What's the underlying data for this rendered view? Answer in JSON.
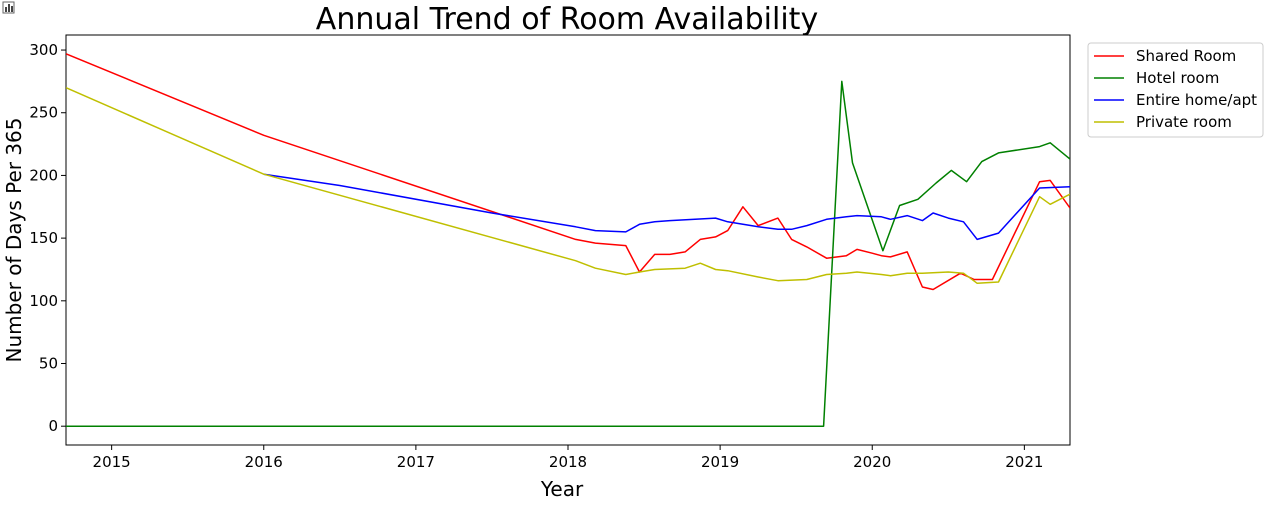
{
  "toolbar_icon": "bar-chart-icon",
  "chart_data": {
    "type": "line",
    "title": "Annual Trend of Room Availability",
    "xlabel": "Year",
    "ylabel": "Number of Days Per 365",
    "x_ticks": [
      "2015",
      "2016",
      "2017",
      "2018",
      "2019",
      "2020",
      "2021"
    ],
    "y_ticks": [
      "0",
      "50",
      "100",
      "150",
      "200",
      "250",
      "300"
    ],
    "xlim": [
      2014.7,
      2021.3
    ],
    "ylim": [
      -15,
      312
    ],
    "grid": false,
    "legend_position": "outside-top-right",
    "series": [
      {
        "name": "Shared Room",
        "color": "#ff0000",
        "points": [
          [
            2014.7,
            297
          ],
          [
            2016.0,
            232
          ],
          [
            2018.05,
            149
          ],
          [
            2018.18,
            146
          ],
          [
            2018.38,
            144
          ],
          [
            2018.47,
            123
          ],
          [
            2018.57,
            137
          ],
          [
            2018.67,
            137
          ],
          [
            2018.77,
            139
          ],
          [
            2018.87,
            149
          ],
          [
            2018.97,
            151
          ],
          [
            2019.05,
            156
          ],
          [
            2019.15,
            175
          ],
          [
            2019.25,
            160
          ],
          [
            2019.38,
            166
          ],
          [
            2019.47,
            149
          ],
          [
            2019.57,
            143
          ],
          [
            2019.7,
            134
          ],
          [
            2019.83,
            136
          ],
          [
            2019.9,
            141
          ],
          [
            2020.0,
            138
          ],
          [
            2020.06,
            136
          ],
          [
            2020.12,
            135
          ],
          [
            2020.23,
            139
          ],
          [
            2020.33,
            111
          ],
          [
            2020.4,
            109
          ],
          [
            2020.58,
            122
          ],
          [
            2020.67,
            117
          ],
          [
            2020.79,
            117
          ],
          [
            2021.1,
            195
          ],
          [
            2021.17,
            196
          ],
          [
            2021.3,
            174
          ]
        ]
      },
      {
        "name": "Hotel room",
        "color": "#008000",
        "points": [
          [
            2014.7,
            0
          ],
          [
            2019.68,
            0
          ],
          [
            2019.8,
            275
          ],
          [
            2019.87,
            210
          ],
          [
            2020.07,
            140
          ],
          [
            2020.18,
            176
          ],
          [
            2020.3,
            181
          ],
          [
            2020.42,
            194
          ],
          [
            2020.52,
            204
          ],
          [
            2020.62,
            195
          ],
          [
            2020.72,
            211
          ],
          [
            2020.83,
            218
          ],
          [
            2021.1,
            223
          ],
          [
            2021.17,
            226
          ],
          [
            2021.3,
            213
          ]
        ]
      },
      {
        "name": "Entire home/apt",
        "color": "#0000ff",
        "points": [
          [
            2016.0,
            201
          ],
          [
            2016.5,
            192
          ],
          [
            2017.5,
            170
          ],
          [
            2018.05,
            159
          ],
          [
            2018.18,
            156
          ],
          [
            2018.38,
            155
          ],
          [
            2018.47,
            161
          ],
          [
            2018.57,
            163
          ],
          [
            2018.67,
            164
          ],
          [
            2018.97,
            166
          ],
          [
            2019.05,
            163
          ],
          [
            2019.25,
            159
          ],
          [
            2019.38,
            157
          ],
          [
            2019.47,
            157
          ],
          [
            2019.57,
            160
          ],
          [
            2019.7,
            165
          ],
          [
            2019.83,
            167
          ],
          [
            2019.9,
            168
          ],
          [
            2020.06,
            167
          ],
          [
            2020.12,
            165
          ],
          [
            2020.23,
            168
          ],
          [
            2020.33,
            164
          ],
          [
            2020.4,
            170
          ],
          [
            2020.5,
            166
          ],
          [
            2020.6,
            163
          ],
          [
            2020.69,
            149
          ],
          [
            2020.83,
            154
          ],
          [
            2021.1,
            190
          ],
          [
            2021.3,
            191
          ]
        ]
      },
      {
        "name": "Private room",
        "color": "#bfbf00",
        "points": [
          [
            2014.7,
            270
          ],
          [
            2016.0,
            201
          ],
          [
            2018.05,
            132
          ],
          [
            2018.18,
            126
          ],
          [
            2018.38,
            121
          ],
          [
            2018.47,
            123
          ],
          [
            2018.57,
            125
          ],
          [
            2018.77,
            126
          ],
          [
            2018.87,
            130
          ],
          [
            2018.97,
            125
          ],
          [
            2019.05,
            124
          ],
          [
            2019.25,
            119
          ],
          [
            2019.38,
            116
          ],
          [
            2019.57,
            117
          ],
          [
            2019.7,
            121
          ],
          [
            2019.83,
            122
          ],
          [
            2019.9,
            123
          ],
          [
            2020.06,
            121
          ],
          [
            2020.12,
            120
          ],
          [
            2020.23,
            122
          ],
          [
            2020.33,
            122
          ],
          [
            2020.5,
            123
          ],
          [
            2020.6,
            122
          ],
          [
            2020.69,
            114
          ],
          [
            2020.83,
            115
          ],
          [
            2021.1,
            183
          ],
          [
            2021.17,
            177
          ],
          [
            2021.3,
            185
          ]
        ]
      }
    ]
  }
}
